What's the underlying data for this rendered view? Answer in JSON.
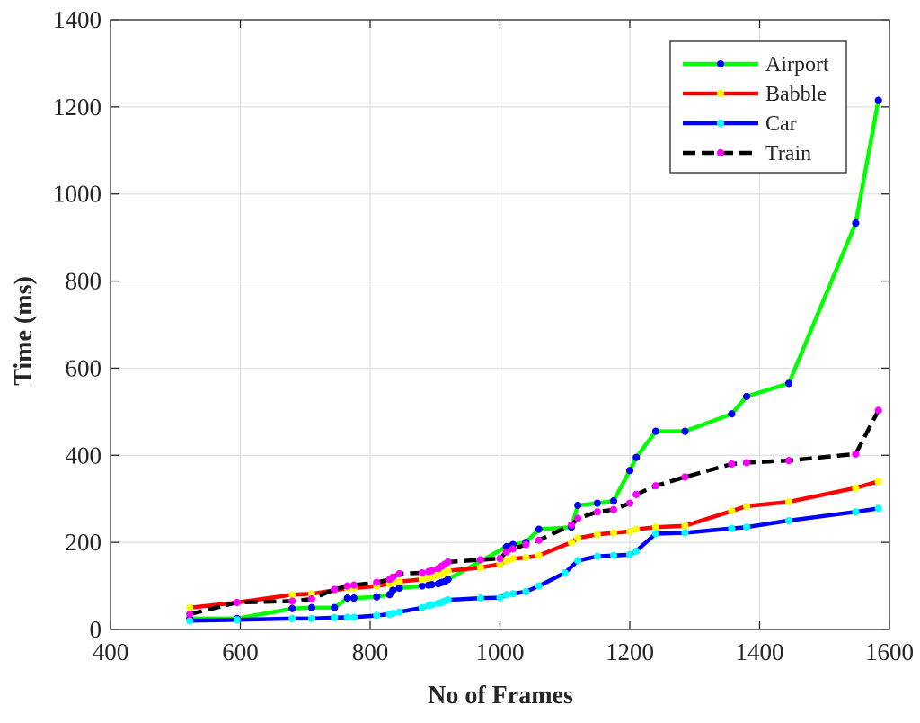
{
  "chart_data": {
    "type": "line",
    "title": "",
    "xlabel": "No of Frames",
    "ylabel": "Time (ms)",
    "xlim": [
      400,
      1600
    ],
    "ylim": [
      0,
      1400
    ],
    "xticks": [
      400,
      600,
      800,
      1000,
      1200,
      1400,
      1600
    ],
    "yticks": [
      0,
      200,
      400,
      600,
      800,
      1000,
      1200,
      1400
    ],
    "xtick_labels": [
      "400",
      "600",
      "800",
      "1000",
      "1200",
      "1400",
      "1600"
    ],
    "ytick_labels": [
      "0",
      "200",
      "400",
      "600",
      "800",
      "1000",
      "1200",
      "1400"
    ],
    "grid": true,
    "legend_position": "top-right",
    "series": [
      {
        "name": "Airport",
        "color": "#00ff00",
        "marker_color": "#0000ff",
        "dash": "solid",
        "x": [
          522,
          595,
          680,
          710,
          745,
          765,
          775,
          810,
          830,
          835,
          845,
          880,
          890,
          895,
          905,
          910,
          915,
          920,
          1010,
          1020,
          1040,
          1060,
          1110,
          1120,
          1150,
          1175,
          1200,
          1210,
          1240,
          1285,
          1357,
          1380,
          1445,
          1548,
          1583
        ],
        "y": [
          25,
          25,
          48,
          50,
          50,
          72,
          72,
          75,
          80,
          90,
          95,
          100,
          102,
          103,
          105,
          108,
          110,
          115,
          190,
          195,
          200,
          230,
          235,
          285,
          290,
          295,
          365,
          395,
          455,
          455,
          495,
          535,
          565,
          933,
          1215
        ]
      },
      {
        "name": "Babble",
        "color": "#ff0000",
        "marker_color": "#ffff00",
        "dash": "solid",
        "x": [
          522,
          595,
          680,
          710,
          745,
          765,
          775,
          810,
          830,
          835,
          845,
          880,
          890,
          895,
          905,
          910,
          915,
          920,
          970,
          1000,
          1010,
          1020,
          1040,
          1060,
          1110,
          1120,
          1150,
          1175,
          1200,
          1210,
          1240,
          1285,
          1357,
          1380,
          1445,
          1548,
          1583
        ],
        "y": [
          50,
          62,
          80,
          82,
          90,
          95,
          95,
          100,
          105,
          108,
          110,
          115,
          118,
          120,
          125,
          128,
          130,
          135,
          142,
          150,
          158,
          163,
          165,
          170,
          200,
          210,
          218,
          222,
          225,
          230,
          235,
          238,
          272,
          283,
          293,
          325,
          340
        ]
      },
      {
        "name": "Car",
        "color": "#0000ff",
        "marker_color": "#00ffff",
        "dash": "solid",
        "x": [
          522,
          595,
          680,
          710,
          745,
          765,
          775,
          810,
          830,
          835,
          845,
          880,
          890,
          895,
          905,
          910,
          915,
          920,
          970,
          1000,
          1010,
          1020,
          1040,
          1060,
          1100,
          1120,
          1150,
          1175,
          1200,
          1210,
          1240,
          1285,
          1357,
          1380,
          1445,
          1548,
          1583
        ],
        "y": [
          20,
          22,
          25,
          25,
          27,
          28,
          28,
          32,
          35,
          37,
          40,
          50,
          55,
          57,
          60,
          62,
          65,
          68,
          72,
          73,
          80,
          82,
          87,
          100,
          130,
          158,
          168,
          170,
          172,
          180,
          220,
          222,
          232,
          235,
          250,
          270,
          278
        ]
      },
      {
        "name": "Train",
        "color": "#000000",
        "marker_color": "#ff00ff",
        "dash": "dashed",
        "x": [
          522,
          595,
          680,
          710,
          745,
          765,
          775,
          810,
          830,
          835,
          845,
          880,
          890,
          895,
          905,
          910,
          915,
          920,
          970,
          1000,
          1010,
          1020,
          1040,
          1060,
          1110,
          1120,
          1150,
          1175,
          1200,
          1210,
          1240,
          1285,
          1357,
          1380,
          1445,
          1548,
          1583
        ],
        "y": [
          35,
          62,
          65,
          70,
          92,
          100,
          102,
          108,
          115,
          120,
          128,
          130,
          133,
          135,
          140,
          145,
          150,
          155,
          160,
          163,
          178,
          185,
          195,
          205,
          240,
          255,
          270,
          275,
          290,
          310,
          330,
          350,
          380,
          383,
          388,
          403,
          503
        ]
      }
    ]
  }
}
